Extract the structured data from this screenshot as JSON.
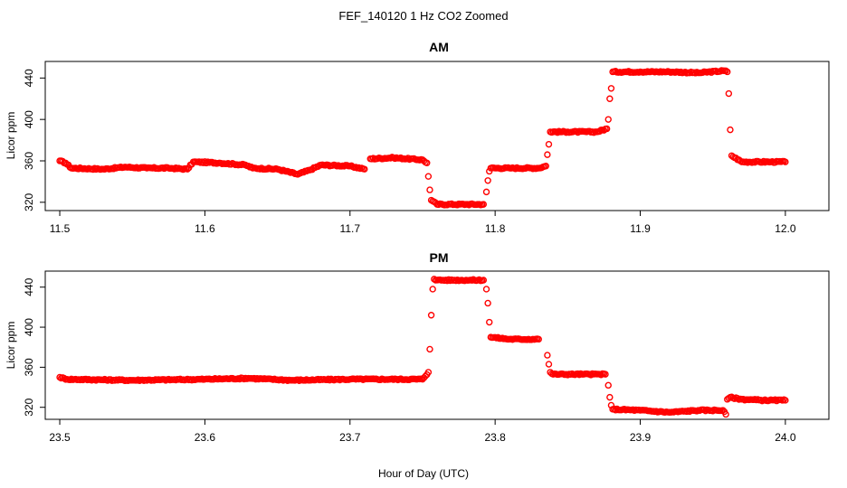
{
  "figure": {
    "title": "FEF_140120  1 Hz CO2 Zoomed",
    "xlabel": "Hour of Day (UTC)"
  },
  "colors": {
    "points": "#ff0000",
    "frame": "#000000",
    "background": "#ffffff"
  },
  "chart_data": [
    {
      "type": "scatter",
      "title": "AM",
      "xlabel": "",
      "ylabel": "Licor ppm",
      "xlim": [
        11.49,
        12.03
      ],
      "ylim": [
        312,
        456
      ],
      "xticks": [
        "11.5",
        "11.6",
        "11.7",
        "11.8",
        "11.9",
        "12.0"
      ],
      "xtick_values": [
        11.5,
        11.6,
        11.7,
        11.8,
        11.9,
        12.0
      ],
      "yticks": [
        "320",
        "360",
        "400",
        "440"
      ],
      "ytick_values": [
        320,
        360,
        400,
        440
      ],
      "grid": false,
      "marker": "open-circle",
      "series": [
        {
          "x": [
            11.5,
            11.504,
            11.508,
            11.53,
            11.545,
            11.56,
            11.575,
            11.588,
            11.592,
            11.61,
            11.628,
            11.633,
            11.65,
            11.664,
            11.672,
            11.68,
            11.7,
            11.71,
            11.714,
            11.73,
            11.75,
            11.753,
            11.754,
            11.755,
            11.756,
            11.76,
            11.78,
            11.792,
            11.794,
            11.795,
            11.796,
            11.797,
            11.81,
            11.83,
            11.835,
            11.836,
            11.837,
            11.838,
            11.85,
            11.87,
            11.877,
            11.878,
            11.879,
            11.88,
            11.881,
            11.9,
            11.92,
            11.94,
            11.958,
            11.96,
            11.961,
            11.962,
            11.963,
            11.97,
            11.99,
            12.0
          ],
          "y": [
            360,
            358,
            353,
            352,
            354,
            353,
            353,
            352,
            359,
            358,
            356,
            353,
            352,
            347,
            351,
            356,
            355,
            352,
            362,
            363,
            361,
            358,
            345,
            332,
            322,
            318,
            318,
            318,
            330,
            341,
            350,
            353,
            353,
            353,
            355,
            366,
            376,
            388,
            388,
            388,
            391,
            400,
            420,
            430,
            446,
            446,
            446,
            445,
            447,
            446,
            425,
            390,
            365,
            359,
            359,
            359
          ]
        }
      ]
    },
    {
      "type": "scatter",
      "title": "PM",
      "xlabel": "Hour of Day (UTC)",
      "ylabel": "Licor ppm",
      "xlim": [
        23.49,
        24.03
      ],
      "ylim": [
        308,
        456
      ],
      "xticks": [
        "23.5",
        "23.6",
        "23.7",
        "23.8",
        "23.9",
        "24.0"
      ],
      "xtick_values": [
        23.5,
        23.6,
        23.7,
        23.8,
        23.9,
        24.0
      ],
      "yticks": [
        "320",
        "360",
        "400",
        "440"
      ],
      "ytick_values": [
        320,
        360,
        400,
        440
      ],
      "grid": false,
      "marker": "open-circle",
      "series": [
        {
          "x": [
            23.5,
            23.505,
            23.55,
            23.6,
            23.63,
            23.66,
            23.7,
            23.75,
            23.754,
            23.755,
            23.756,
            23.757,
            23.758,
            23.76,
            23.78,
            23.792,
            23.794,
            23.795,
            23.796,
            23.797,
            23.81,
            23.83,
            23.836,
            23.837,
            23.838,
            23.84,
            23.86,
            23.876,
            23.878,
            23.879,
            23.88,
            23.881,
            23.9,
            23.92,
            23.94,
            23.957,
            23.959,
            23.96,
            23.962,
            23.97,
            23.985,
            24.0
          ],
          "y": [
            350,
            348,
            347,
            348,
            349,
            347,
            348,
            348,
            355,
            378,
            412,
            438,
            448,
            447,
            447,
            447,
            438,
            424,
            405,
            390,
            388,
            388,
            372,
            363,
            355,
            353,
            353,
            353,
            342,
            330,
            322,
            318,
            317,
            315,
            317,
            317,
            313,
            328,
            330,
            328,
            327,
            327
          ]
        }
      ]
    }
  ]
}
